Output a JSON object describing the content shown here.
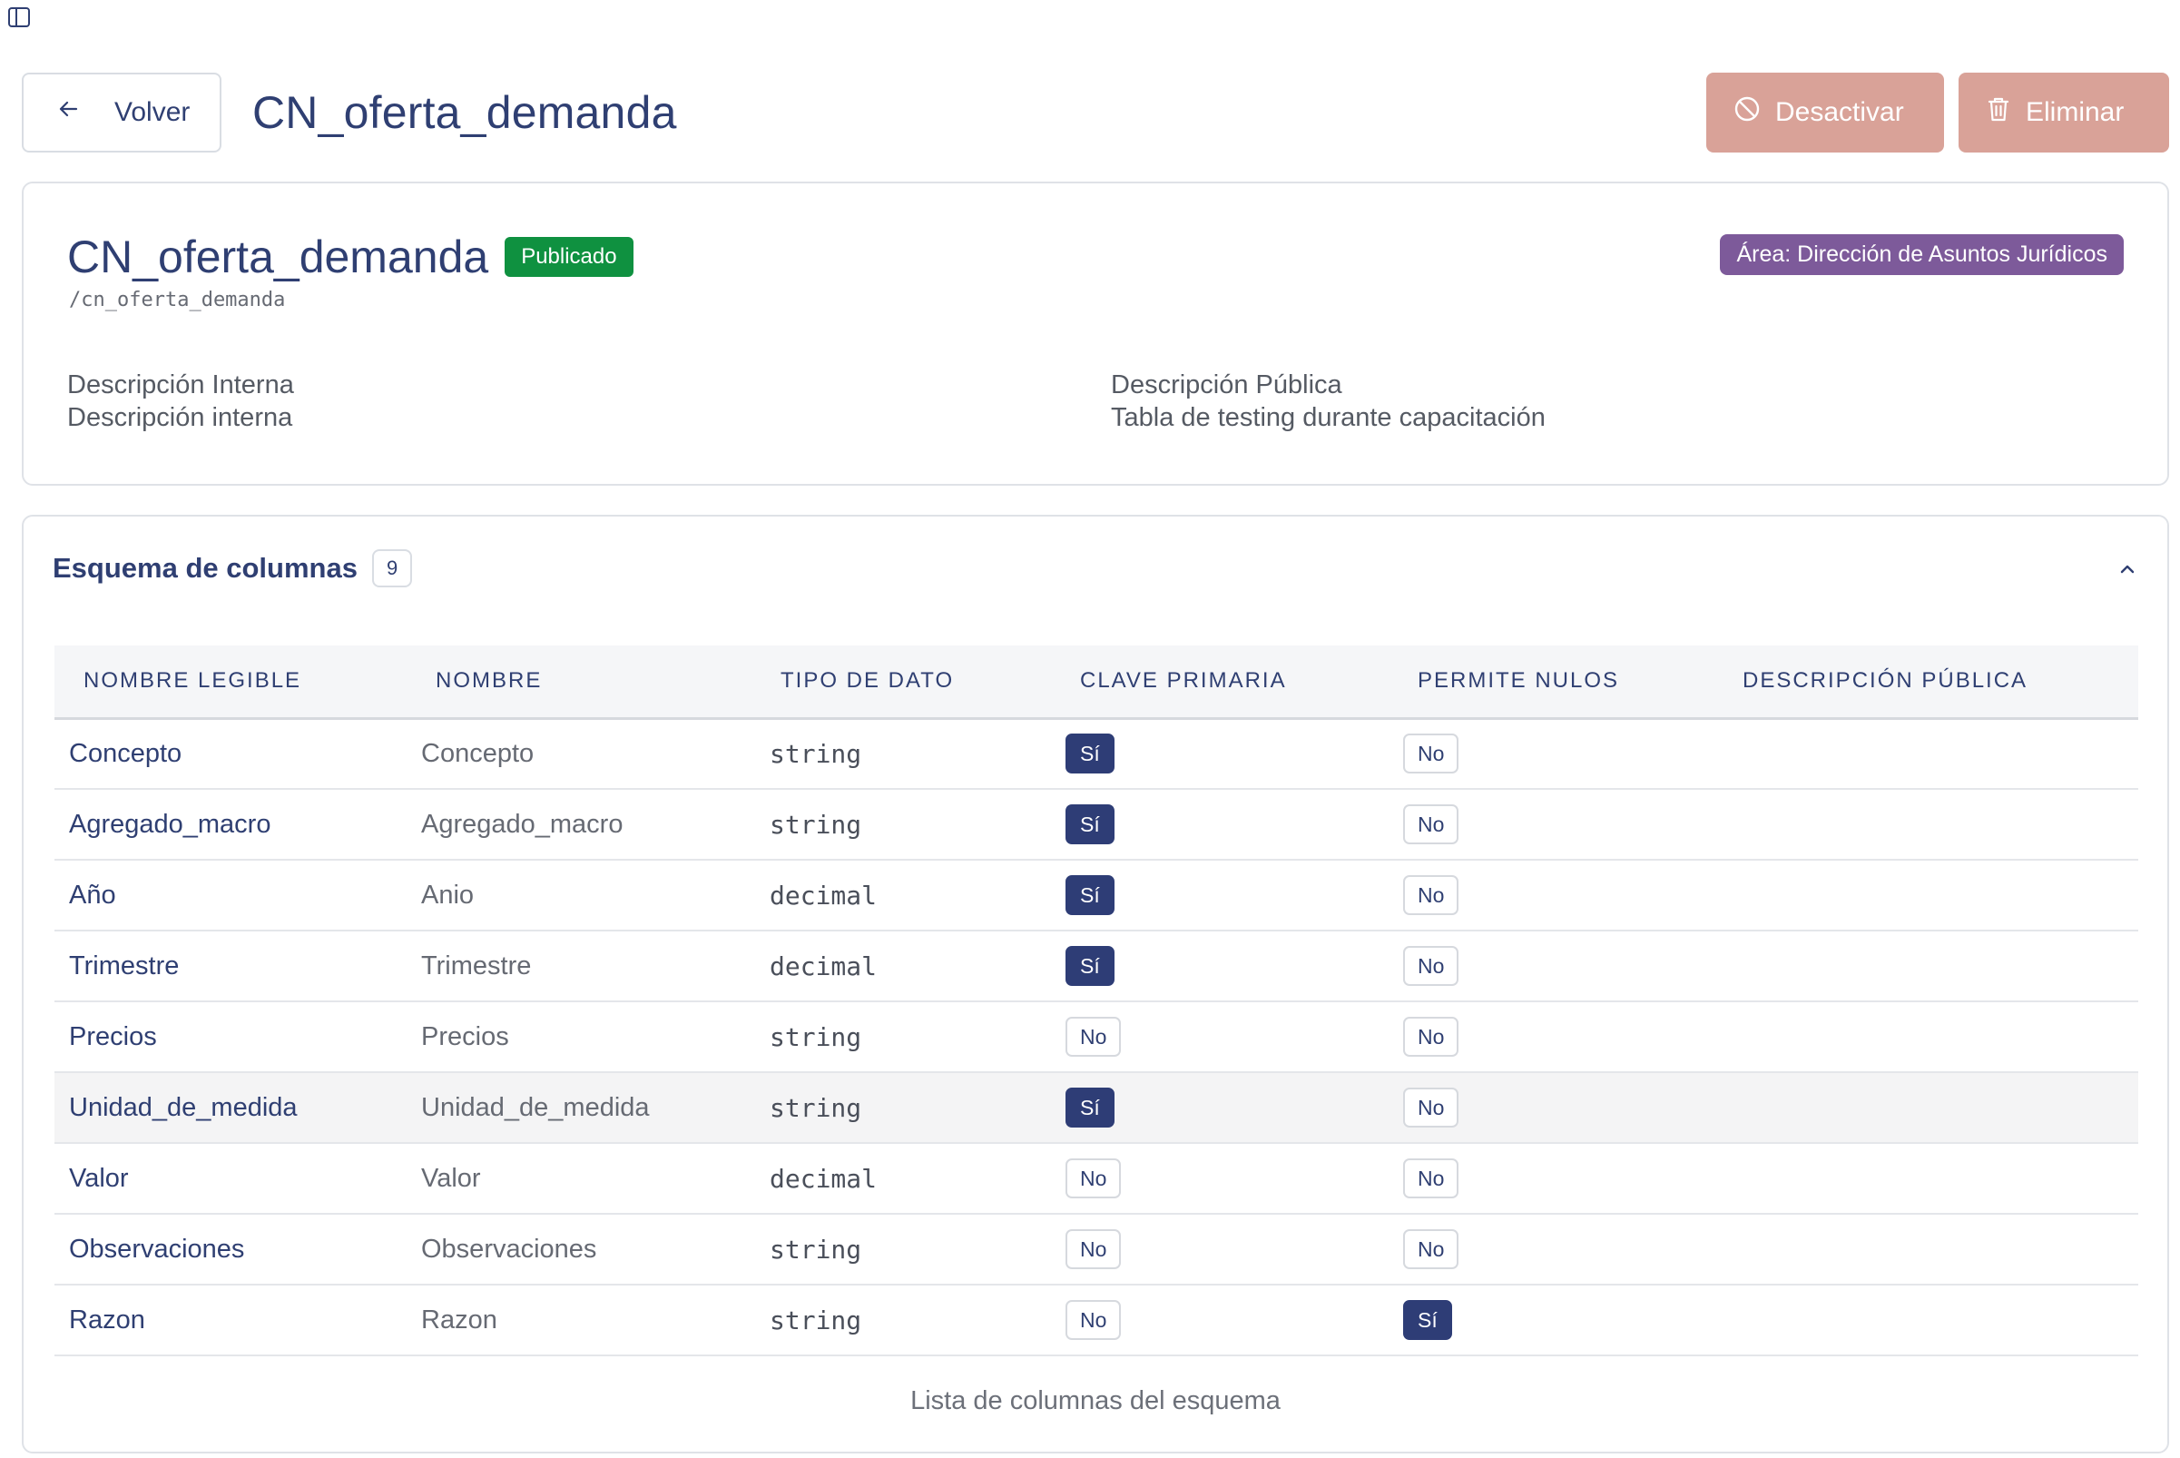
{
  "header": {
    "back_label": "Volver",
    "title": "CN_oferta_demanda",
    "deactivate_label": "Desactivar",
    "delete_label": "Eliminar"
  },
  "info": {
    "title": "CN_oferta_demanda",
    "status": "Publicado",
    "path": "/cn_oferta_demanda",
    "area": "Área: Dirección de Asuntos Jurídicos",
    "internal_label": "Descripción Interna",
    "internal_value": "Descripción interna",
    "public_label": "Descripción Pública",
    "public_value": "Tabla de testing durante capacitación"
  },
  "schema": {
    "title": "Esquema de columnas",
    "count": "9",
    "columns": [
      "NOMBRE LEGIBLE",
      "NOMBRE",
      "TIPO DE DATO",
      "CLAVE PRIMARIA",
      "PERMITE NULOS",
      "DESCRIPCIÓN PÚBLICA"
    ],
    "rows": [
      {
        "legible": "Concepto",
        "nombre": "Concepto",
        "tipo": "string",
        "pk": "Sí",
        "nulos": "No",
        "descripcion": ""
      },
      {
        "legible": "Agregado_macro",
        "nombre": "Agregado_macro",
        "tipo": "string",
        "pk": "Sí",
        "nulos": "No",
        "descripcion": ""
      },
      {
        "legible": "Año",
        "nombre": "Anio",
        "tipo": "decimal",
        "pk": "Sí",
        "nulos": "No",
        "descripcion": ""
      },
      {
        "legible": "Trimestre",
        "nombre": "Trimestre",
        "tipo": "decimal",
        "pk": "Sí",
        "nulos": "No",
        "descripcion": ""
      },
      {
        "legible": "Precios",
        "nombre": "Precios",
        "tipo": "string",
        "pk": "No",
        "nulos": "No",
        "descripcion": ""
      },
      {
        "legible": "Unidad_de_medida",
        "nombre": "Unidad_de_medida",
        "tipo": "string",
        "pk": "Sí",
        "nulos": "No",
        "descripcion": ""
      },
      {
        "legible": "Valor",
        "nombre": "Valor",
        "tipo": "decimal",
        "pk": "No",
        "nulos": "No",
        "descripcion": ""
      },
      {
        "legible": "Observaciones",
        "nombre": "Observaciones",
        "tipo": "string",
        "pk": "No",
        "nulos": "No",
        "descripcion": ""
      },
      {
        "legible": "Razon",
        "nombre": "Razon",
        "tipo": "string",
        "pk": "No",
        "nulos": "Sí",
        "descripcion": ""
      }
    ],
    "caption": "Lista de columnas del esquema"
  },
  "icons": {
    "sidebar_toggle": "sidebar-panel-icon",
    "back": "arrow-left-icon",
    "deactivate": "ban-icon",
    "delete": "trash-icon",
    "collapse": "chevron-up-icon"
  },
  "colors": {
    "primary": "#2f3f72",
    "published": "#0f9140",
    "area_badge": "#7d5a9a",
    "danger_muted": "#d9a298"
  }
}
